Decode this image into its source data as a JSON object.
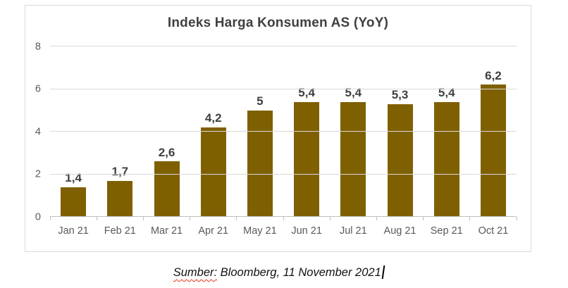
{
  "chart_data": {
    "type": "bar",
    "title": "Indeks Harga Konsumen AS (YoY)",
    "categories": [
      "Jan 21",
      "Feb 21",
      "Mar 21",
      "Apr 21",
      "May 21",
      "Jun 21",
      "Jul 21",
      "Aug 21",
      "Sep 21",
      "Oct 21"
    ],
    "values": [
      1.4,
      1.7,
      2.6,
      4.2,
      5,
      5.4,
      5.4,
      5.3,
      5.4,
      6.2
    ],
    "value_labels": [
      "1,4",
      "1,7",
      "2,6",
      "4,2",
      "5",
      "5,4",
      "5,4",
      "5,3",
      "5,4",
      "6,2"
    ],
    "xlabel": "",
    "ylabel": "",
    "ylim": [
      0,
      8
    ],
    "yticks": [
      0,
      2,
      4,
      6,
      8
    ],
    "grid": true,
    "legend": "none",
    "bar_color": "#7F6000"
  },
  "caption": {
    "source_word": "Sumber:",
    "rest": " Bloomberg, 11 November 2021"
  },
  "colors": {
    "bar": "#7F6000",
    "gridline": "#D9D9D9",
    "axis_line": "#BFBFBF",
    "chart_border": "#D9D9D9",
    "title_text": "#404040",
    "value_label_text": "#404040",
    "axis_tick_text": "#595959",
    "spellcheck_underline": "#E0351B"
  }
}
